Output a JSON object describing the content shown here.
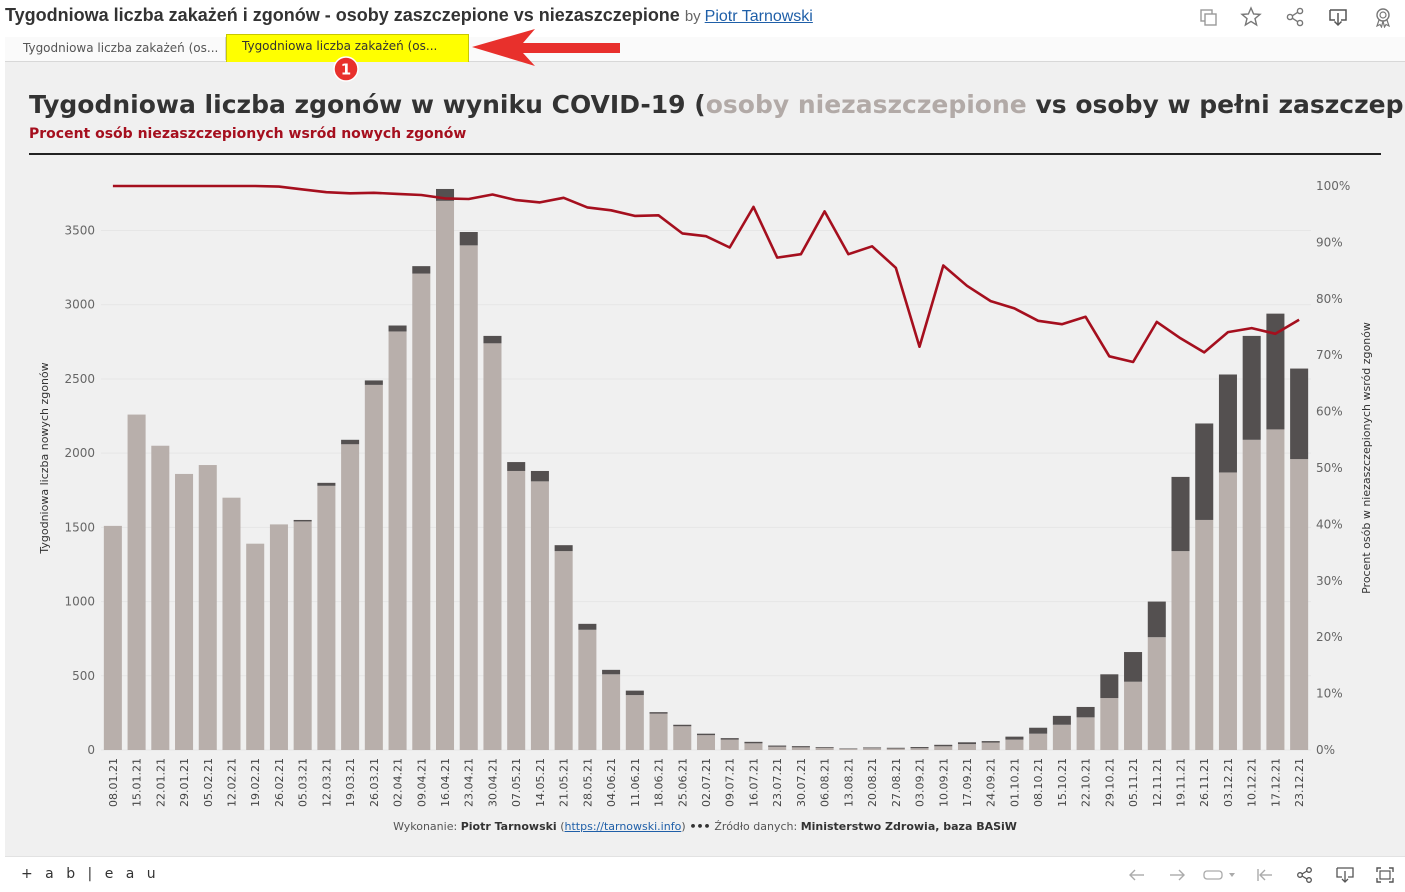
{
  "header": {
    "title": "Tygodniowa liczba zakażeń i zgonów - osoby zaszczepione vs niezaszczepione",
    "by": "by",
    "author": "Piotr Tarnowski"
  },
  "toolbar_icons": [
    "copy-icon",
    "star-icon",
    "share-icon",
    "download-icon",
    "award-icon"
  ],
  "tabs": [
    {
      "label": "Tygodniowa liczba zakażeń (os..."
    },
    {
      "label": "Tygodniowa liczba zakażeń (os..."
    }
  ],
  "annotation": {
    "badge": "1",
    "color": "#e8302c",
    "highlight": "#ffff00"
  },
  "chart": {
    "title_part1": "Tygodniowa liczba zgonów w wyniku COVID-19 (",
    "title_highlight": "osoby niezaszczepione",
    "title_part2": " vs osoby w pełni zaszczepione)",
    "subtitle": "Procent osób niezaszczepionych wsród nowych zgonów"
  },
  "credit": {
    "prefix": "Wykonanie: ",
    "author": "Piotr Tarnowski",
    "open": " (",
    "link": "https://tarnowski.info",
    "close": ")",
    "sep": " ••• ",
    "source_prefix": " Źródło danych: ",
    "source": "Ministerstwo Zdrowia, baza BASiW"
  },
  "footer": {
    "logo": "+ a b | e a u"
  },
  "chart_data": {
    "type": "bar",
    "stacked": true,
    "colors": {
      "unvaccinated": "#b8afab",
      "vaccinated": "#545050",
      "line": "#a50f1e",
      "highlight_title": "#b2aaa7"
    },
    "ylabel": "Tygodniowa liczba nowych zgonów",
    "y2label": "Procent osób w niezaszczepionych wsród zgonów",
    "ylim": [
      0,
      3800
    ],
    "y_ticks": [
      0,
      500,
      1000,
      1500,
      2000,
      2500,
      3000,
      3500
    ],
    "y2lim": [
      0,
      1
    ],
    "y2_ticks": [
      "0%",
      "10%",
      "20%",
      "30%",
      "40%",
      "50%",
      "60%",
      "70%",
      "80%",
      "90%",
      "100%"
    ],
    "categories": [
      "08.01.21",
      "15.01.21",
      "22.01.21",
      "29.01.21",
      "05.02.21",
      "12.02.21",
      "19.02.21",
      "26.02.21",
      "05.03.21",
      "12.03.21",
      "19.03.21",
      "26.03.21",
      "02.04.21",
      "09.04.21",
      "16.04.21",
      "23.04.21",
      "30.04.21",
      "07.05.21",
      "14.05.21",
      "21.05.21",
      "28.05.21",
      "04.06.21",
      "11.06.21",
      "18.06.21",
      "25.06.21",
      "02.07.21",
      "09.07.21",
      "16.07.21",
      "23.07.21",
      "30.07.21",
      "06.08.21",
      "13.08.21",
      "20.08.21",
      "27.08.21",
      "03.09.21",
      "10.09.21",
      "17.09.21",
      "24.09.21",
      "01.10.21",
      "08.10.21",
      "15.10.21",
      "22.10.21",
      "29.10.21",
      "05.11.21",
      "12.11.21",
      "19.11.21",
      "26.11.21",
      "03.12.21",
      "10.12.21",
      "17.12.21",
      "23.12.21"
    ],
    "series": [
      {
        "name": "osoby niezaszczepione",
        "values": [
          1510,
          2260,
          2050,
          1860,
          1920,
          1700,
          1390,
          1520,
          1540,
          1780,
          2060,
          2460,
          2820,
          3210,
          3700,
          3400,
          2740,
          1880,
          1810,
          1340,
          810,
          510,
          370,
          245,
          160,
          100,
          70,
          45,
          22,
          18,
          15,
          8,
          12,
          10,
          12,
          25,
          40,
          50,
          70,
          110,
          170,
          220,
          350,
          460,
          760,
          1340,
          1550,
          1870,
          2090,
          2160,
          1960
        ]
      },
      {
        "name": "osoby w pełni zaszczepione",
        "values": [
          0,
          0,
          0,
          0,
          0,
          0,
          0,
          0,
          10,
          20,
          30,
          30,
          40,
          50,
          80,
          90,
          50,
          60,
          70,
          40,
          40,
          30,
          30,
          10,
          10,
          10,
          10,
          10,
          8,
          8,
          5,
          3,
          5,
          5,
          8,
          10,
          12,
          10,
          20,
          40,
          60,
          70,
          160,
          200,
          240,
          500,
          650,
          660,
          700,
          780,
          610
        ]
      }
    ],
    "line_pct_unvaccinated": [
      1.0,
      1.0,
      1.0,
      1.0,
      1.0,
      1.0,
      1.0,
      0.999,
      0.994,
      0.989,
      0.987,
      0.988,
      0.986,
      0.984,
      0.978,
      0.977,
      0.985,
      0.975,
      0.971,
      0.979,
      0.962,
      0.957,
      0.947,
      0.948,
      0.916,
      0.911,
      0.891,
      0.963,
      0.873,
      0.879,
      0.955,
      0.879,
      0.893,
      0.855,
      0.715,
      0.859,
      0.823,
      0.796,
      0.783,
      0.761,
      0.755,
      0.768,
      0.698,
      0.688,
      0.759,
      0.73,
      0.705,
      0.741,
      0.748,
      0.738,
      0.763
    ]
  }
}
